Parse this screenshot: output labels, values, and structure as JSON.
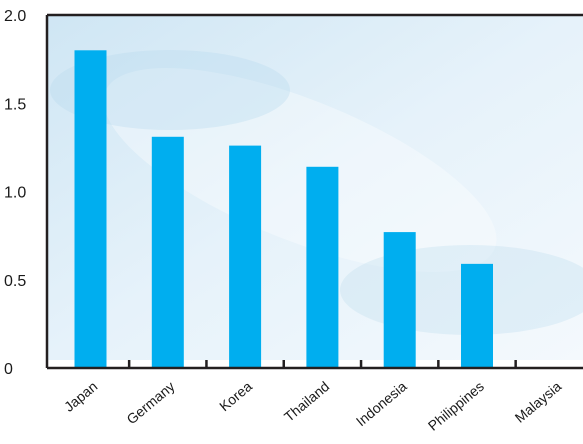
{
  "chart_data": {
    "type": "bar",
    "categories": [
      "Japan",
      "Germany",
      "Korea",
      "Thailand",
      "Indonesia",
      "Philippines",
      "Malaysia"
    ],
    "values": [
      1.8,
      1.31,
      1.26,
      1.14,
      0.77,
      0.59,
      0
    ],
    "title": "",
    "xlabel": "",
    "ylabel": "",
    "ylim": [
      0,
      2.0
    ],
    "yticks": [
      "0",
      "0.5",
      "1.0",
      "1.5",
      "2.0"
    ],
    "grid": false,
    "legend": "none",
    "bar_color": "#00aeef",
    "axis_color": "#231f20"
  }
}
